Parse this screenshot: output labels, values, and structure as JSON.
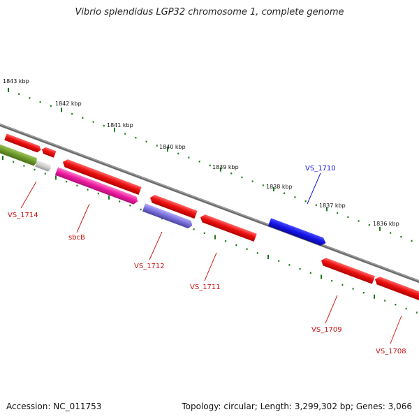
{
  "title": "Vibrio splendidus LGP32 chromosome 1, complete genome",
  "footer": {
    "accession": "Accession: NC_011753",
    "summary": "Topology: circular; Length: 3,299,302 bp; Genes: 3,066"
  },
  "colors": {
    "backbone": "#808080",
    "tick": "#1a7a1a",
    "forward_gene": "#1414e6",
    "reverse_gene": "#ee1111",
    "sbcB": "#ee1aa0",
    "VS_1712": "#7a70d8",
    "olive_gene": "#6e9a2c",
    "grey_gene": "#cccccc"
  },
  "ticks": [
    {
      "label": "1843 kbp"
    },
    {
      "label": "1842 kbp"
    },
    {
      "label": "1841 kbp"
    },
    {
      "label": "1840 kbp"
    },
    {
      "label": "1839 kbp"
    },
    {
      "label": "1838 kbp"
    },
    {
      "label": "1837 kbp"
    },
    {
      "label": "1836 kbp"
    }
  ],
  "genes": [
    {
      "name": "VS_1714"
    },
    {
      "name": "sbcB"
    },
    {
      "name": "VS_1712"
    },
    {
      "name": "VS_1711"
    },
    {
      "name": "VS_1710"
    },
    {
      "name": "VS_1709"
    },
    {
      "name": "VS_1708"
    }
  ]
}
